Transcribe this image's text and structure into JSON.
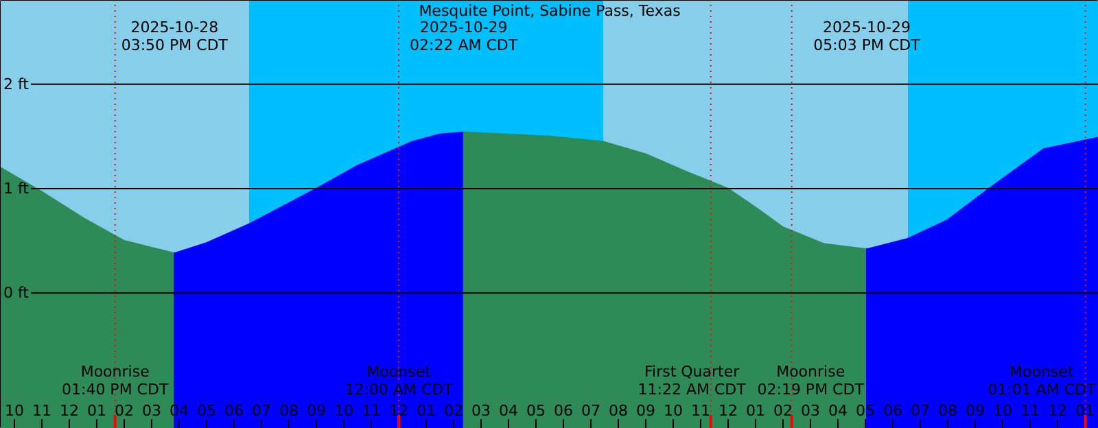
{
  "chart_data": {
    "type": "area",
    "title": "Mesquite Point, Sabine Pass, Texas",
    "xlim": [
      "2025-10-28T09:30",
      "2025-10-30T01:30"
    ],
    "ylim": [
      -1.3,
      2.8
    ],
    "xticks": [
      {
        "value": "2025-10-28T10:00",
        "label": "10"
      },
      {
        "value": "2025-10-28T11:00",
        "label": "11"
      },
      {
        "value": "2025-10-28T12:00",
        "label": "12"
      },
      {
        "value": "2025-10-28T13:00",
        "label": "01"
      },
      {
        "value": "2025-10-28T14:00",
        "label": "02"
      },
      {
        "value": "2025-10-28T15:00",
        "label": "03"
      },
      {
        "value": "2025-10-28T16:00",
        "label": "04"
      },
      {
        "value": "2025-10-28T17:00",
        "label": "05"
      },
      {
        "value": "2025-10-28T18:00",
        "label": "06"
      },
      {
        "value": "2025-10-28T19:00",
        "label": "07"
      },
      {
        "value": "2025-10-28T20:00",
        "label": "08"
      },
      {
        "value": "2025-10-28T21:00",
        "label": "09"
      },
      {
        "value": "2025-10-28T22:00",
        "label": "10"
      },
      {
        "value": "2025-10-28T23:00",
        "label": "11"
      },
      {
        "value": "2025-10-29T00:00",
        "label": "12"
      },
      {
        "value": "2025-10-29T01:00",
        "label": "01"
      },
      {
        "value": "2025-10-29T02:00",
        "label": "02"
      },
      {
        "value": "2025-10-29T03:00",
        "label": "03"
      },
      {
        "value": "2025-10-29T04:00",
        "label": "04"
      },
      {
        "value": "2025-10-29T05:00",
        "label": "05"
      },
      {
        "value": "2025-10-29T06:00",
        "label": "06"
      },
      {
        "value": "2025-10-29T07:00",
        "label": "07"
      },
      {
        "value": "2025-10-29T08:00",
        "label": "08"
      },
      {
        "value": "2025-10-29T09:00",
        "label": "09"
      },
      {
        "value": "2025-10-29T10:00",
        "label": "10"
      },
      {
        "value": "2025-10-29T11:00",
        "label": "11"
      },
      {
        "value": "2025-10-29T12:00",
        "label": "12"
      },
      {
        "value": "2025-10-29T13:00",
        "label": "01"
      },
      {
        "value": "2025-10-29T14:00",
        "label": "02"
      },
      {
        "value": "2025-10-29T15:00",
        "label": "03"
      },
      {
        "value": "2025-10-29T16:00",
        "label": "04"
      },
      {
        "value": "2025-10-29T17:00",
        "label": "05"
      },
      {
        "value": "2025-10-29T18:00",
        "label": "06"
      },
      {
        "value": "2025-10-29T19:00",
        "label": "07"
      },
      {
        "value": "2025-10-29T20:00",
        "label": "08"
      },
      {
        "value": "2025-10-29T21:00",
        "label": "09"
      },
      {
        "value": "2025-10-29T22:00",
        "label": "10"
      },
      {
        "value": "2025-10-29T23:00",
        "label": "11"
      },
      {
        "value": "2025-10-30T00:00",
        "label": "12"
      },
      {
        "value": "2025-10-30T01:00",
        "label": "01"
      }
    ],
    "yticks": [
      {
        "value": 0,
        "label": "0 ft"
      },
      {
        "value": 1,
        "label": "1 ft"
      },
      {
        "value": 2,
        "label": "2 ft"
      }
    ],
    "grid": "y",
    "bands": [
      {
        "axis": "x",
        "from": "2025-10-28T09:30",
        "to": "2025-10-28T18:33",
        "color": "#87ceeb"
      },
      {
        "axis": "x",
        "from": "2025-10-28T18:33",
        "to": "2025-10-29T07:27",
        "color": "#00bfff"
      },
      {
        "axis": "x",
        "from": "2025-10-29T07:27",
        "to": "2025-10-29T18:33",
        "color": "#87ceeb"
      },
      {
        "axis": "x",
        "from": "2025-10-29T18:33",
        "to": "2025-10-30T01:30",
        "color": "#00bfff"
      }
    ],
    "ref_lines": [
      {
        "axis": "x",
        "value": "2025-10-28T13:40",
        "label": "Moonrise\n01:40 PM CDT",
        "color": "#ff0000"
      },
      {
        "axis": "x",
        "value": "2025-10-29T00:00",
        "label": "Moonset\n12:00 AM CDT",
        "color": "#ff0000"
      },
      {
        "axis": "x",
        "value": "2025-10-29T11:22",
        "label": "First Quarter\n11:22 AM CDT",
        "color": "#ff0000"
      },
      {
        "axis": "x",
        "value": "2025-10-29T14:19",
        "label": "Moonrise\n02:19 PM CDT",
        "color": "#ff0000"
      },
      {
        "axis": "x",
        "value": "2025-10-30T01:01",
        "label": "Moonset\n01:01 AM CDT",
        "color": "#ff0000"
      }
    ],
    "series": [
      {
        "color": "#2e8b57",
        "x": [
          "2025-10-28T09:30",
          "2025-10-28T11:00",
          "2025-10-28T12:30",
          "2025-10-28T14:00",
          "2025-10-28T15:50"
        ],
        "values": [
          1.2,
          0.97,
          0.72,
          0.5,
          0.38
        ]
      },
      {
        "color": "#0000ff",
        "x": [
          "2025-10-28T15:50",
          "2025-10-28T17:00",
          "2025-10-28T18:33",
          "2025-10-28T20:00",
          "2025-10-28T21:00",
          "2025-10-28T22:30",
          "2025-10-29T00:30",
          "2025-10-29T01:30",
          "2025-10-29T02:22"
        ],
        "values": [
          0.38,
          0.48,
          0.66,
          0.86,
          1.0,
          1.22,
          1.45,
          1.52,
          1.54
        ]
      },
      {
        "color": "#2e8b57",
        "x": [
          "2025-10-29T02:22",
          "2025-10-29T05:30",
          "2025-10-29T07:27",
          "2025-10-29T09:00",
          "2025-10-29T10:30",
          "2025-10-29T12:00",
          "2025-10-29T13:00",
          "2025-10-29T14:00",
          "2025-10-29T15:30",
          "2025-10-29T17:03"
        ],
        "values": [
          1.54,
          1.5,
          1.45,
          1.33,
          1.16,
          1.0,
          0.82,
          0.63,
          0.47,
          0.42
        ]
      },
      {
        "color": "#0000ff",
        "x": [
          "2025-10-29T17:03",
          "2025-10-29T18:33",
          "2025-10-29T20:00",
          "2025-10-29T21:30",
          "2025-10-29T23:30",
          "2025-10-30T01:30"
        ],
        "values": [
          0.42,
          0.52,
          0.7,
          1.0,
          1.38,
          1.49
        ]
      }
    ],
    "annotations": [
      "2025-10-28\n03:50 PM CDT",
      "2025-10-29\n02:22 AM CDT",
      "2025-10-29\n05:03 PM CDT"
    ]
  }
}
